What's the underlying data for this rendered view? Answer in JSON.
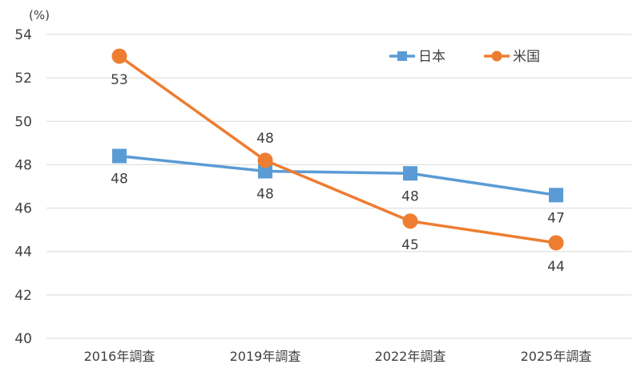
{
  "chart_data": {
    "type": "line",
    "unit_label": "(%)",
    "categories": [
      "2016年調査",
      "2019年調査",
      "2022年調査",
      "2025年調査"
    ],
    "ylim": [
      40,
      54
    ],
    "yticks": [
      40,
      42,
      44,
      46,
      48,
      50,
      52,
      54
    ],
    "grid": true,
    "legend_position": "top-right",
    "series": [
      {
        "name": "日本",
        "values": [
          48.4,
          47.7,
          47.6,
          46.6
        ],
        "data_labels": [
          "48",
          "48",
          "48",
          "47"
        ],
        "color": "#5b9bd5",
        "marker": "square"
      },
      {
        "name": "米国",
        "values": [
          53.0,
          48.2,
          45.4,
          44.4
        ],
        "data_labels": [
          "53",
          "48",
          "45",
          "44"
        ],
        "color": "#ed7d31",
        "marker": "circle"
      }
    ]
  }
}
